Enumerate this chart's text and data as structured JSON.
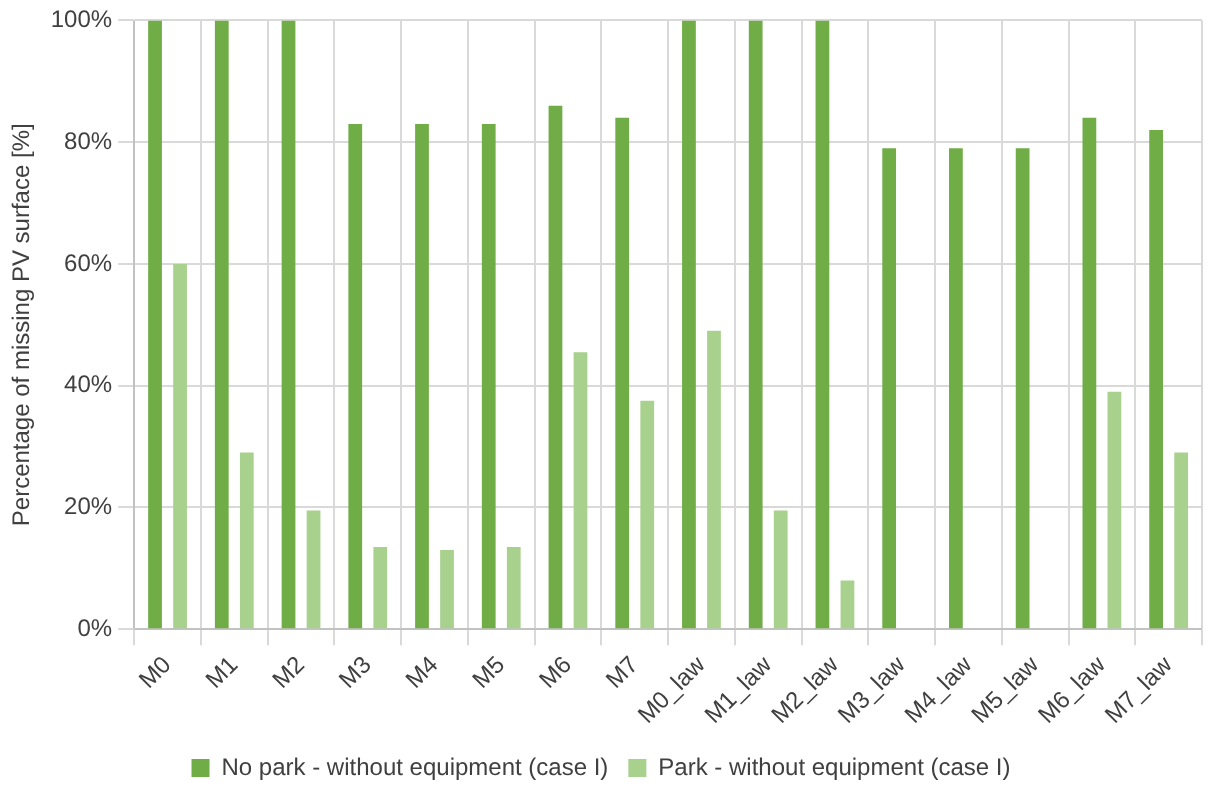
{
  "chart_data": {
    "type": "bar",
    "ylabel": "Percentage of missing PV surface [%]",
    "categories": [
      "M0",
      "M1",
      "M2",
      "M3",
      "M4",
      "M5",
      "M6",
      "M7",
      "M0_law",
      "M1_law",
      "M2_law",
      "M3_law",
      "M4_law",
      "M5_law",
      "M6_law",
      "M7_law"
    ],
    "series": [
      {
        "name": "No park - without equipment (case I)",
        "color": "#70ad47",
        "values": [
          100,
          100,
          100,
          83,
          83,
          83,
          86,
          84,
          100,
          100,
          100,
          79,
          79,
          79,
          84,
          82
        ]
      },
      {
        "name": "Park - without equipment (case I)",
        "color": "#a9d18e",
        "values": [
          60,
          29,
          19.5,
          13.5,
          13,
          13.5,
          45.5,
          37.5,
          49,
          19.5,
          8,
          null,
          null,
          null,
          39,
          29
        ]
      }
    ],
    "ylim": [
      0,
      100
    ],
    "yticks": [
      {
        "value": 0,
        "label": "0%"
      },
      {
        "value": 20,
        "label": "20%"
      },
      {
        "value": 40,
        "label": "40%"
      },
      {
        "value": 60,
        "label": "60%"
      },
      {
        "value": 80,
        "label": "80%"
      },
      {
        "value": 100,
        "label": "100%"
      }
    ],
    "grid": true,
    "legend": "bottom"
  }
}
